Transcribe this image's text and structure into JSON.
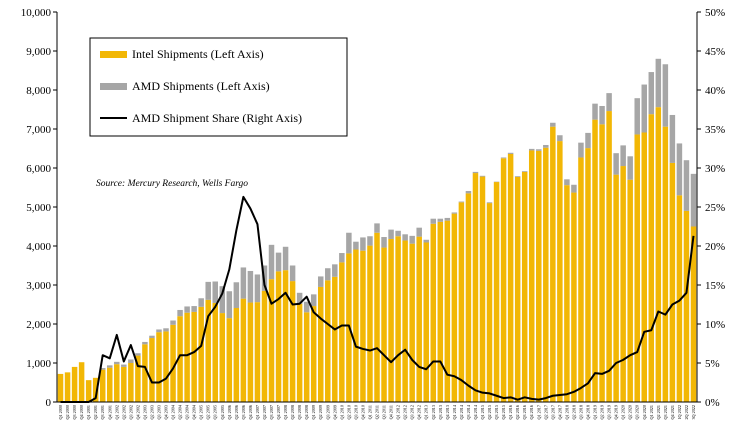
{
  "chart_data": {
    "type": "bar",
    "subtype": "stacked bar with line on secondary axis",
    "source": "Source: Mercury Research, Wells Fargo",
    "left_axis": {
      "ylim": [
        0,
        10000
      ],
      "ticks": [
        "0",
        "1,000",
        "2,000",
        "3,000",
        "4,000",
        "5,000",
        "6,000",
        "7,000",
        "8,000",
        "9,000",
        "10,000"
      ]
    },
    "right_axis": {
      "ylim": [
        0,
        50
      ],
      "ticks": [
        "0%",
        "5%",
        "10%",
        "15%",
        "20%",
        "25%",
        "30%",
        "35%",
        "40%",
        "45%",
        "50%"
      ]
    },
    "grid": false,
    "legend_position": "top-left (inside plot)",
    "colors": {
      "intel": "#F2B705",
      "amd": "#A6A6A6",
      "share": "#000000",
      "axis": "#000000"
    },
    "categories": [
      "Q1 2000",
      "Q2 2000",
      "Q3 2000",
      "Q4 2000",
      "Q1 2001",
      "Q2 2001",
      "Q3 2001",
      "Q4 2001",
      "Q1 2002",
      "Q2 2002",
      "Q3 2002",
      "Q4 2002",
      "Q1 2003",
      "Q2 2003",
      "Q3 2003",
      "Q4 2003",
      "Q1 2004",
      "Q2 2004",
      "Q3 2004",
      "Q4 2004",
      "Q1 2005",
      "Q2 2005",
      "Q3 2005",
      "Q4 2005",
      "Q1 2006",
      "Q2 2006",
      "Q3 2006",
      "Q4 2006",
      "Q1 2007",
      "Q2 2007",
      "Q3 2007",
      "Q4 2007",
      "Q1 2008",
      "Q2 2008",
      "Q3 2008",
      "Q4 2008",
      "Q1 2009",
      "Q2 2009",
      "Q3 2009",
      "Q4 2009",
      "Q1 2010",
      "Q2 2010",
      "Q3 2010",
      "Q4 2010",
      "Q1 2011",
      "Q2 2011",
      "Q3 2011",
      "Q4 2011",
      "Q1 2012",
      "Q2 2012",
      "Q3 2012",
      "Q4 2012",
      "Q1 2013",
      "Q2 2013",
      "Q3 2013",
      "Q4 2013",
      "Q1 2014",
      "Q2 2014",
      "Q3 2014",
      "Q4 2014",
      "Q1 2015",
      "Q2 2015",
      "Q3 2015",
      "Q4 2015",
      "Q1 2016",
      "Q2 2016",
      "Q3 2016",
      "Q4 2016",
      "Q1 2017",
      "Q2 2017",
      "Q3 2017",
      "Q4 2017",
      "Q1 2018",
      "Q2 2018",
      "Q3 2018",
      "Q4 2018",
      "Q1 2019",
      "Q2 2019",
      "Q3 2019",
      "Q4 2019",
      "Q1 2020",
      "Q2 2020",
      "Q3 2020",
      "Q4 2020",
      "Q1 2021",
      "Q2 2021",
      "Q3 2021",
      "Q4 2021",
      "1Q 2022",
      "2Q 2022",
      "3Q 2022"
    ],
    "series": [
      {
        "name": "Intel Shipments (Left Axis)",
        "axis": "left",
        "kind": "bar",
        "values": [
          720,
          760,
          900,
          1020,
          560,
          620,
          830,
          880,
          970,
          900,
          1000,
          1190,
          1480,
          1640,
          1790,
          1810,
          1980,
          2200,
          2290,
          2310,
          2440,
          2620,
          2540,
          2280,
          2150,
          2410,
          2650,
          2550,
          2560,
          2850,
          3150,
          3350,
          3380,
          3100,
          2520,
          2300,
          2460,
          2950,
          3120,
          3210,
          3580,
          3810,
          3910,
          3880,
          4010,
          4340,
          3960,
          4180,
          4250,
          4140,
          4060,
          4240,
          4090,
          4570,
          4620,
          4650,
          4830,
          5120,
          5350,
          5870,
          5780,
          5100,
          5640,
          6250,
          6360,
          5770,
          5900,
          6450,
          6440,
          6520,
          7060,
          6690,
          5560,
          5370,
          6270,
          6510,
          7240,
          7120,
          7460,
          5830,
          6050,
          5700,
          6860,
          6910,
          7380,
          7560,
          7060,
          6130,
          5300,
          4900,
          4500
        ],
        "stack": [
          [
            720,
            0
          ],
          [
            760,
            0
          ],
          [
            900,
            0
          ],
          [
            1020,
            0
          ],
          [
            560,
            0
          ],
          [
            620,
            0
          ],
          [
            830,
            40
          ],
          [
            880,
            60
          ],
          [
            970,
            60
          ],
          [
            900,
            60
          ],
          [
            1000,
            90
          ],
          [
            1190,
            60
          ],
          [
            1480,
            60
          ],
          [
            1640,
            60
          ],
          [
            1790,
            70
          ],
          [
            1810,
            80
          ],
          [
            1980,
            110
          ],
          [
            2200,
            160
          ],
          [
            2290,
            160
          ],
          [
            2310,
            150
          ],
          [
            2440,
            220
          ],
          [
            2620,
            460
          ],
          [
            2540,
            550
          ],
          [
            2280,
            690
          ],
          [
            2150,
            690
          ],
          [
            2410,
            660
          ],
          [
            2650,
            800
          ],
          [
            2550,
            810
          ],
          [
            2560,
            710
          ],
          [
            2850,
            650
          ],
          [
            3150,
            880
          ],
          [
            3350,
            480
          ],
          [
            3380,
            600
          ],
          [
            3100,
            400
          ],
          [
            2520,
            280
          ],
          [
            2300,
            270
          ],
          [
            2460,
            300
          ],
          [
            2950,
            270
          ],
          [
            3120,
            310
          ],
          [
            3210,
            320
          ],
          [
            3580,
            240
          ],
          [
            3810,
            530
          ],
          [
            3910,
            200
          ],
          [
            3880,
            340
          ],
          [
            4010,
            240
          ],
          [
            4340,
            240
          ],
          [
            3960,
            270
          ],
          [
            4180,
            240
          ],
          [
            4250,
            140
          ],
          [
            4140,
            160
          ],
          [
            4060,
            200
          ],
          [
            4240,
            230
          ],
          [
            4090,
            70
          ],
          [
            4570,
            130
          ],
          [
            4620,
            80
          ],
          [
            4650,
            70
          ],
          [
            4830,
            30
          ],
          [
            5120,
            20
          ],
          [
            5350,
            60
          ],
          [
            5870,
            30
          ],
          [
            5780,
            20
          ],
          [
            5100,
            20
          ],
          [
            5640,
            10
          ],
          [
            6250,
            20
          ],
          [
            6360,
            30
          ],
          [
            5770,
            20
          ],
          [
            5900,
            20
          ],
          [
            6450,
            40
          ],
          [
            6440,
            40
          ],
          [
            6520,
            70
          ],
          [
            7060,
            100
          ],
          [
            6690,
            150
          ],
          [
            5560,
            150
          ],
          [
            5370,
            200
          ],
          [
            6270,
            380
          ],
          [
            6510,
            390
          ],
          [
            7240,
            410
          ],
          [
            7120,
            470
          ],
          [
            7460,
            460
          ],
          [
            5830,
            550
          ],
          [
            6050,
            530
          ],
          [
            5700,
            600
          ],
          [
            6860,
            930
          ],
          [
            6910,
            1230
          ],
          [
            7380,
            1080
          ],
          [
            7560,
            1240
          ],
          [
            7060,
            1600
          ],
          [
            6130,
            1230
          ],
          [
            5300,
            1330
          ],
          [
            4900,
            1300
          ],
          [
            4500,
            1350
          ]
        ]
      },
      {
        "name": "AMD Shipments (Left Axis)",
        "axis": "left",
        "kind": "bar"
      },
      {
        "name": "AMD Shipment Share (Right Axis)",
        "axis": "right",
        "kind": "line",
        "values": [
          0,
          0,
          0,
          0,
          0,
          0.5,
          6,
          5.6,
          8.6,
          5.2,
          7.3,
          4.6,
          4.5,
          2.5,
          2.5,
          3,
          4.3,
          6,
          6,
          6.4,
          7.2,
          11,
          12.2,
          13.9,
          17,
          22,
          26.3,
          24.8,
          22.8,
          15,
          12.6,
          13.2,
          14,
          12.5,
          12.6,
          13.5,
          11.5,
          10.7,
          10,
          9.3,
          9.8,
          9.8,
          7.1,
          6.8,
          6.6,
          6.9,
          6,
          5.1,
          6,
          6.7,
          5.4,
          4.5,
          4.2,
          5.2,
          5.2,
          3.5,
          3.3,
          2.8,
          2.1,
          1.5,
          1.2,
          1.1,
          0.8,
          0.5,
          0.6,
          0.3,
          0.6,
          0.4,
          0.3,
          0.5,
          0.8,
          0.9,
          1,
          1.3,
          1.8,
          2.4,
          3.7,
          3.6,
          4,
          5,
          5.4,
          6,
          6.4,
          9,
          9.2,
          11.6,
          11.2,
          12.5,
          13,
          14,
          21.3
        ]
      }
    ]
  },
  "legend": {
    "items": [
      {
        "label": "Intel Shipments (Left Axis)",
        "swatch": "bar",
        "color": "#F2B705"
      },
      {
        "label": "AMD Shipments (Left Axis)",
        "swatch": "bar",
        "color": "#A6A6A6"
      },
      {
        "label": "AMD Shipment Share (Right Axis)",
        "swatch": "line",
        "color": "#000000"
      }
    ]
  }
}
